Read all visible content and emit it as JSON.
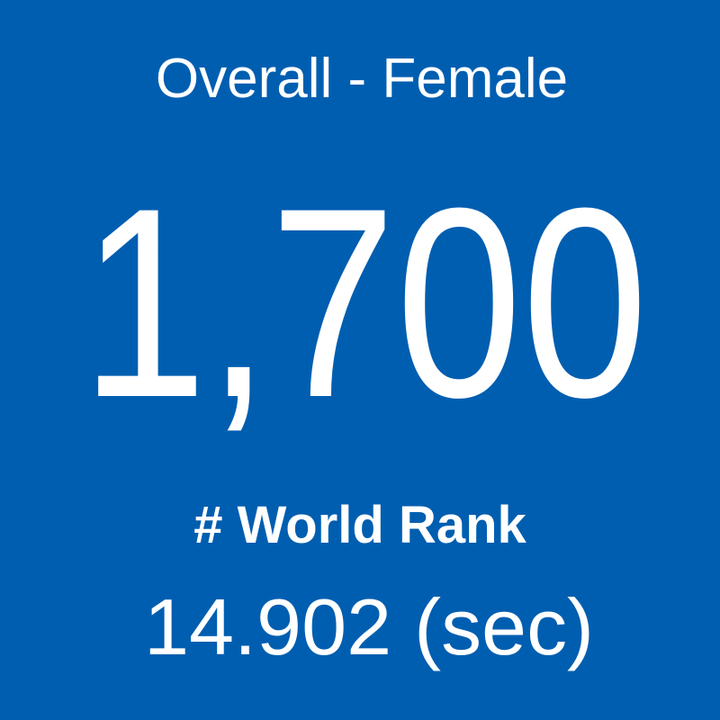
{
  "tile": {
    "title": "Overall - Female",
    "value": "1,700",
    "label": "# World Rank",
    "time": "14.902 (sec)"
  }
}
